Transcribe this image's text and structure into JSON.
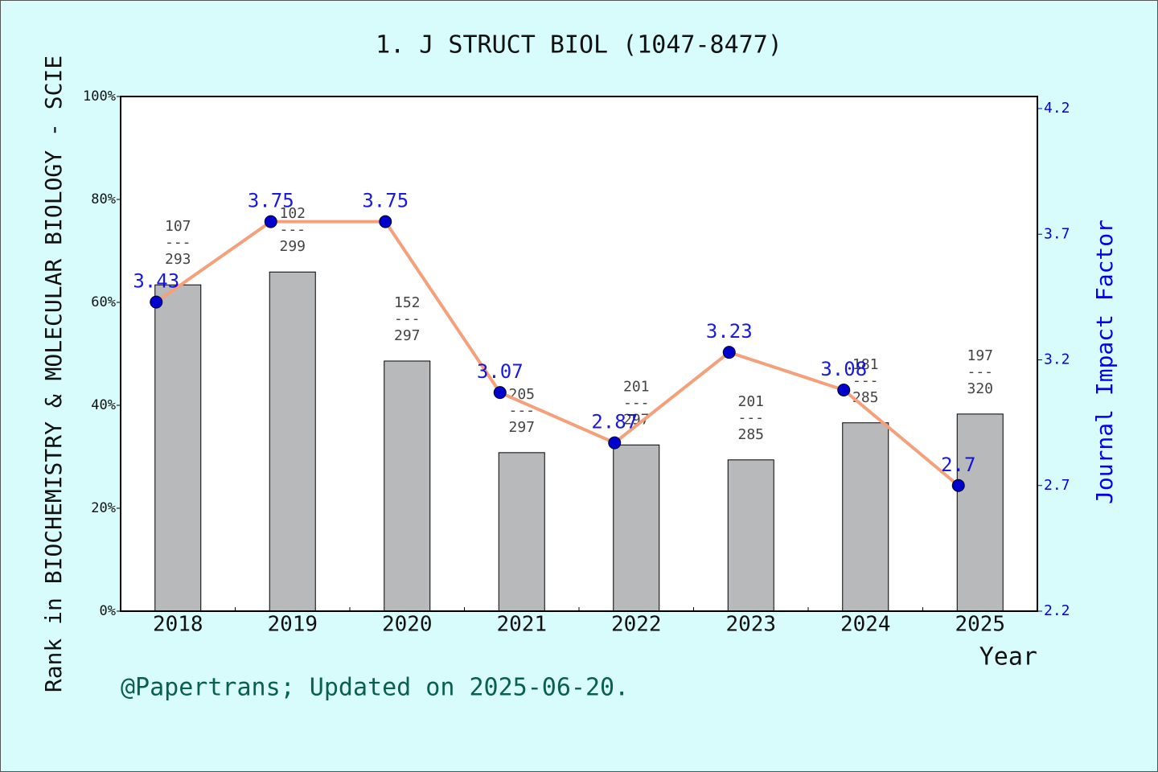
{
  "chart_data": {
    "type": "bar-line",
    "title": "1. J STRUCT BIOL (1047-8477)",
    "y_label": "Rank in BIOCHEMISTRY & MOLECULAR BIOLOGY - SCIE",
    "x_label": "Year",
    "y2_label": "Journal Impact Factor",
    "footer": "@Papertrans; Updated on 2025-06-20.",
    "categories": [
      "2018",
      "2019",
      "2020",
      "2021",
      "2022",
      "2023",
      "2024",
      "2025"
    ],
    "series": [
      {
        "name": "Rank",
        "type": "bar",
        "color": "#b8b9bb",
        "values": [
          63.4,
          65.9,
          48.6,
          30.8,
          32.3,
          29.4,
          36.6,
          38.3
        ]
      },
      {
        "name": "Impact Factor",
        "type": "line",
        "axis": "y2",
        "color": "#f4a07a",
        "marker_color": "#0000cc",
        "values": [
          3.43,
          3.75,
          3.75,
          3.07,
          2.87,
          3.23,
          3.08,
          2.7
        ]
      }
    ],
    "rank_labels": [
      {
        "rank": "107",
        "total": "293"
      },
      {
        "rank": "102",
        "total": "299"
      },
      {
        "rank": "152",
        "total": "297"
      },
      {
        "rank": "205",
        "total": "297"
      },
      {
        "rank": "201",
        "total": "297"
      },
      {
        "rank": "201",
        "total": "285"
      },
      {
        "rank": "181",
        "total": "285"
      },
      {
        "rank": "197",
        "total": "320"
      }
    ],
    "separator": "---",
    "ylim": [
      0,
      100
    ],
    "yticks": [
      {
        "value": 0,
        "label": "0%"
      },
      {
        "value": 20,
        "label": "20%"
      },
      {
        "value": 40,
        "label": "40%"
      },
      {
        "value": 60,
        "label": "60%"
      },
      {
        "value": 80,
        "label": "80%"
      },
      {
        "value": 100,
        "label": "100%"
      }
    ],
    "y2lim": [
      2.2,
      4.248
    ],
    "y2ticks": [
      2.2,
      2.7,
      3.2,
      3.7,
      4.2
    ]
  }
}
